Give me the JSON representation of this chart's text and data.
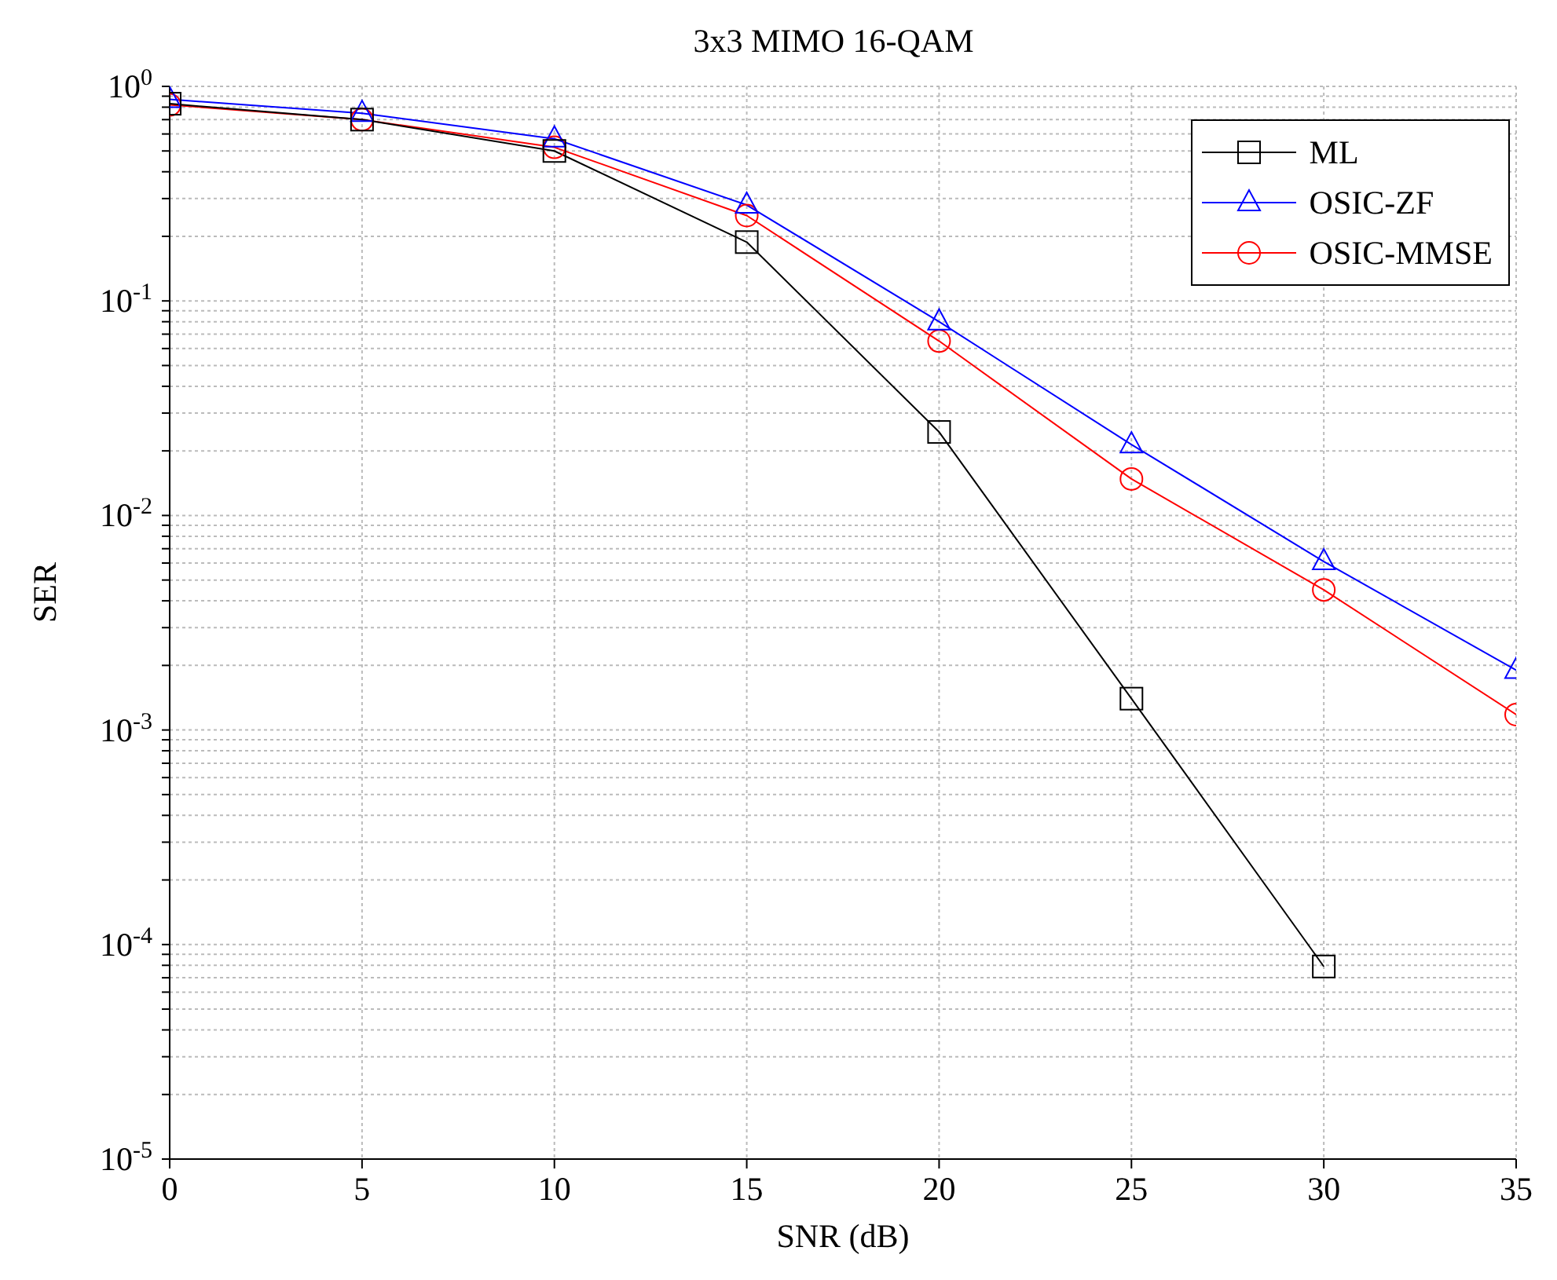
{
  "chart_data": {
    "type": "line",
    "title": "3x3 MIMO 16-QAM",
    "xlabel": "SNR (dB)",
    "ylabel": "SER",
    "log": "y",
    "grid": true,
    "legend": "top right",
    "line_style": "solid",
    "x": [
      0,
      5,
      10,
      15,
      20,
      25,
      30,
      35
    ],
    "xlim": [
      0,
      35
    ],
    "xticks": [
      0,
      5,
      10,
      15,
      20,
      25,
      30,
      35
    ],
    "ylim": [
      1e-05,
      1
    ],
    "yticks": [
      {
        "value": 1e-05,
        "label": "10$^{-5}$"
      },
      {
        "value": 2e-05,
        "label": null
      },
      {
        "value": 3e-05,
        "label": null
      },
      {
        "value": 4e-05,
        "label": null
      },
      {
        "value": 5e-05,
        "label": null
      },
      {
        "value": 6e-05,
        "label": null
      },
      {
        "value": 7e-05,
        "label": null
      },
      {
        "value": 8e-05,
        "label": null
      },
      {
        "value": 9e-05,
        "label": null
      },
      {
        "value": 0.0001,
        "label": "10$^{-4}$"
      },
      {
        "value": 0.0002,
        "label": null
      },
      {
        "value": 0.0003,
        "label": null
      },
      {
        "value": 0.0004,
        "label": null
      },
      {
        "value": 0.0005,
        "label": null
      },
      {
        "value": 0.0006,
        "label": null
      },
      {
        "value": 0.0007,
        "label": null
      },
      {
        "value": 0.0008,
        "label": null
      },
      {
        "value": 0.0009,
        "label": null
      },
      {
        "value": 0.001,
        "label": "10$^{-3}$"
      },
      {
        "value": 0.002,
        "label": null
      },
      {
        "value": 0.003,
        "label": null
      },
      {
        "value": 0.004,
        "label": null
      },
      {
        "value": 0.005,
        "label": null
      },
      {
        "value": 0.006,
        "label": null
      },
      {
        "value": 0.007,
        "label": null
      },
      {
        "value": 0.008,
        "label": null
      },
      {
        "value": 0.009,
        "label": null
      },
      {
        "value": 0.01,
        "label": "10$^{-2}$"
      },
      {
        "value": 0.02,
        "label": null
      },
      {
        "value": 0.03,
        "label": null
      },
      {
        "value": 0.04,
        "label": null
      },
      {
        "value": 0.05,
        "label": null
      },
      {
        "value": 0.06,
        "label": null
      },
      {
        "value": 0.07,
        "label": null
      },
      {
        "value": 0.08,
        "label": null
      },
      {
        "value": 0.09,
        "label": null
      },
      {
        "value": 0.1,
        "label": "10$^{-1}$"
      },
      {
        "value": 0.2,
        "label": null
      },
      {
        "value": 0.3,
        "label": null
      },
      {
        "value": 0.4,
        "label": null
      },
      {
        "value": 0.5,
        "label": null
      },
      {
        "value": 0.6,
        "label": null
      },
      {
        "value": 0.7,
        "label": null
      },
      {
        "value": 0.8,
        "label": null
      },
      {
        "value": 0.9,
        "label": null
      },
      {
        "value": 1,
        "label": "10$^{0}$"
      }
    ],
    "series": [
      {
        "name": "ML",
        "color": "#000000",
        "marker": "square",
        "values": [
          0.83,
          0.7,
          0.5,
          0.188,
          0.0245,
          0.0014,
          7.9e-05,
          null
        ]
      },
      {
        "name": "OSIC-ZF",
        "color": "#0000ff",
        "marker": "triangle",
        "values": [
          0.87,
          0.75,
          0.57,
          0.28,
          0.08,
          0.0214,
          0.0061,
          0.0019
        ]
      },
      {
        "name": "OSIC-MMSE",
        "color": "#ff0000",
        "marker": "circle",
        "values": [
          0.82,
          0.7,
          0.52,
          0.25,
          0.065,
          0.0148,
          0.0045,
          0.00118
        ]
      }
    ]
  }
}
